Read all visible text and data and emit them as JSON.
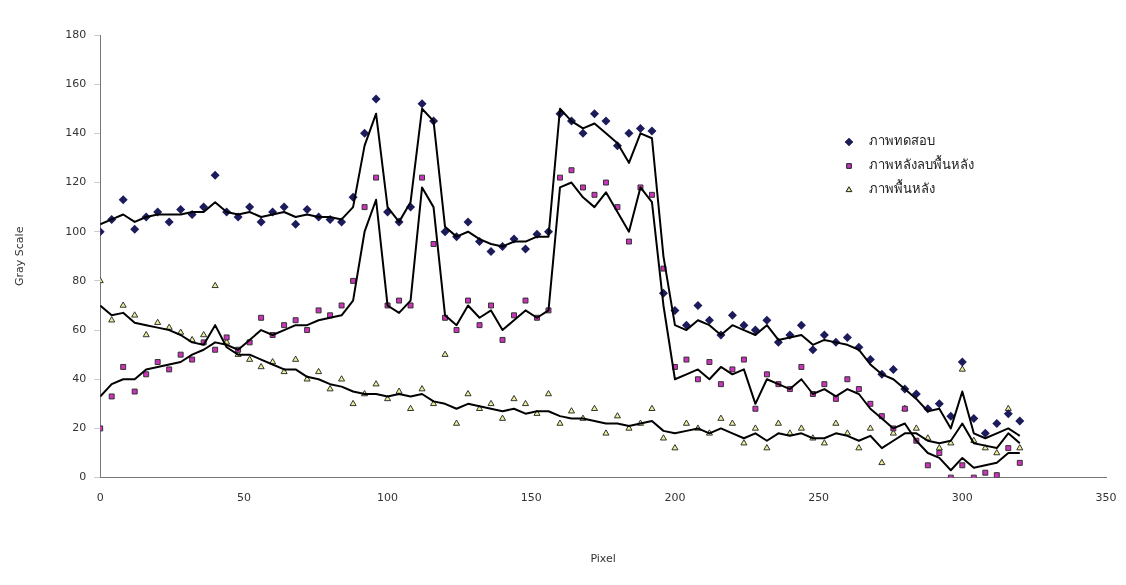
{
  "chart_data": {
    "type": "scatter",
    "xlabel": "Pixel",
    "ylabel": "Gray Scale",
    "x": [
      0,
      4,
      8,
      12,
      16,
      20,
      24,
      28,
      32,
      36,
      40,
      44,
      48,
      52,
      56,
      60,
      64,
      68,
      72,
      76,
      80,
      84,
      88,
      92,
      96,
      100,
      104,
      108,
      112,
      116,
      120,
      124,
      128,
      132,
      136,
      140,
      144,
      148,
      152,
      156,
      160,
      164,
      168,
      172,
      176,
      180,
      184,
      188,
      192,
      196,
      200,
      204,
      208,
      212,
      216,
      220,
      224,
      228,
      232,
      236,
      240,
      244,
      248,
      252,
      256,
      260,
      264,
      268,
      272,
      276,
      280,
      284,
      288,
      292,
      296,
      300,
      304,
      308,
      312,
      316,
      320
    ],
    "series": [
      {
        "name": "ภาพทดสอบ",
        "marker": "diamond",
        "color": "#1c1c5c",
        "values": [
          100,
          105,
          113,
          101,
          106,
          108,
          104,
          109,
          107,
          110,
          123,
          108,
          106,
          110,
          104,
          108,
          110,
          103,
          109,
          106,
          105,
          104,
          114,
          140,
          154,
          108,
          104,
          110,
          152,
          145,
          100,
          98,
          104,
          96,
          92,
          94,
          97,
          93,
          99,
          100,
          148,
          145,
          140,
          148,
          145,
          135,
          140,
          142,
          141,
          75,
          68,
          62,
          70,
          64,
          58,
          66,
          62,
          60,
          64,
          55,
          58,
          62,
          52,
          58,
          55,
          57,
          53,
          48,
          42,
          44,
          36,
          34,
          28,
          30,
          25,
          47,
          24,
          18,
          22,
          26,
          23
        ]
      },
      {
        "name": "ภาพหลังลบพื้นหลัง",
        "marker": "square",
        "color": "#cc33bb",
        "values": [
          20,
          33,
          45,
          35,
          42,
          47,
          44,
          50,
          48,
          55,
          52,
          57,
          52,
          55,
          65,
          58,
          62,
          64,
          60,
          68,
          66,
          70,
          80,
          110,
          122,
          70,
          72,
          70,
          122,
          95,
          65,
          60,
          72,
          62,
          70,
          56,
          66,
          72,
          65,
          68,
          122,
          125,
          118,
          115,
          120,
          110,
          96,
          118,
          115,
          85,
          45,
          48,
          40,
          47,
          38,
          44,
          48,
          28,
          42,
          38,
          36,
          45,
          34,
          38,
          32,
          40,
          36,
          30,
          25,
          20,
          28,
          15,
          5,
          10,
          0,
          5,
          0,
          2,
          1,
          12,
          6
        ]
      },
      {
        "name": "ภาพพื้นหลัง",
        "marker": "triangle",
        "color": "#eeee99",
        "values": [
          80,
          64,
          70,
          66,
          58,
          63,
          61,
          59,
          56,
          58,
          78,
          55,
          50,
          48,
          45,
          47,
          43,
          48,
          40,
          43,
          36,
          40,
          30,
          34,
          38,
          32,
          35,
          28,
          36,
          30,
          50,
          22,
          34,
          28,
          30,
          24,
          32,
          30,
          26,
          34,
          22,
          27,
          24,
          28,
          18,
          25,
          20,
          22,
          28,
          16,
          12,
          22,
          20,
          18,
          24,
          22,
          14,
          20,
          12,
          22,
          18,
          20,
          16,
          14,
          22,
          18,
          12,
          20,
          6,
          18,
          28,
          20,
          16,
          12,
          14,
          44,
          15,
          12,
          10,
          28,
          12
        ]
      },
      {
        "type": "line",
        "marker": "none",
        "color": "#000000",
        "values": [
          103,
          105,
          107,
          104,
          106,
          107,
          107,
          107,
          108,
          108,
          112,
          108,
          107,
          108,
          106,
          107,
          108,
          106,
          107,
          106,
          106,
          105,
          110,
          135,
          148,
          110,
          104,
          112,
          150,
          145,
          102,
          98,
          100,
          97,
          95,
          94,
          96,
          96,
          98,
          98,
          150,
          145,
          142,
          144,
          140,
          136,
          128,
          140,
          138,
          90,
          62,
          60,
          64,
          62,
          58,
          62,
          60,
          58,
          62,
          56,
          57,
          58,
          54,
          56,
          55,
          54,
          52,
          46,
          42,
          40,
          36,
          32,
          27,
          28,
          20,
          35,
          18,
          16,
          18,
          20,
          17
        ]
      },
      {
        "type": "line",
        "marker": "none",
        "color": "#000000",
        "values": [
          33,
          38,
          40,
          40,
          44,
          45,
          46,
          47,
          50,
          52,
          55,
          54,
          52,
          56,
          60,
          58,
          60,
          62,
          62,
          64,
          65,
          66,
          72,
          100,
          113,
          70,
          67,
          72,
          118,
          110,
          66,
          62,
          70,
          65,
          68,
          60,
          64,
          68,
          65,
          68,
          118,
          120,
          114,
          110,
          116,
          108,
          100,
          118,
          112,
          70,
          40,
          42,
          44,
          40,
          45,
          42,
          44,
          30,
          40,
          38,
          36,
          40,
          34,
          36,
          33,
          36,
          34,
          28,
          24,
          20,
          22,
          15,
          10,
          8,
          3,
          8,
          4,
          5,
          6,
          10,
          10
        ]
      },
      {
        "type": "line",
        "marker": "none",
        "color": "#000000",
        "values": [
          70,
          66,
          67,
          63,
          62,
          61,
          60,
          58,
          55,
          54,
          62,
          53,
          50,
          50,
          48,
          46,
          44,
          44,
          41,
          40,
          38,
          37,
          35,
          34,
          34,
          33,
          34,
          33,
          34,
          31,
          30,
          28,
          30,
          29,
          28,
          27,
          28,
          26,
          27,
          27,
          25,
          24,
          24,
          23,
          22,
          22,
          21,
          22,
          23,
          19,
          18,
          19,
          20,
          18,
          20,
          18,
          16,
          18,
          15,
          18,
          17,
          18,
          16,
          16,
          18,
          17,
          15,
          17,
          12,
          15,
          18,
          18,
          15,
          14,
          15,
          22,
          14,
          13,
          12,
          18,
          14
        ]
      }
    ],
    "xlim": [
      0,
      350
    ],
    "xticks": [
      0,
      50,
      100,
      150,
      200,
      250,
      300,
      350
    ],
    "ylim": [
      0,
      180
    ],
    "yticks": [
      0,
      20,
      40,
      60,
      80,
      100,
      120,
      140,
      160,
      180
    ],
    "grid": false,
    "legend": "top right"
  }
}
